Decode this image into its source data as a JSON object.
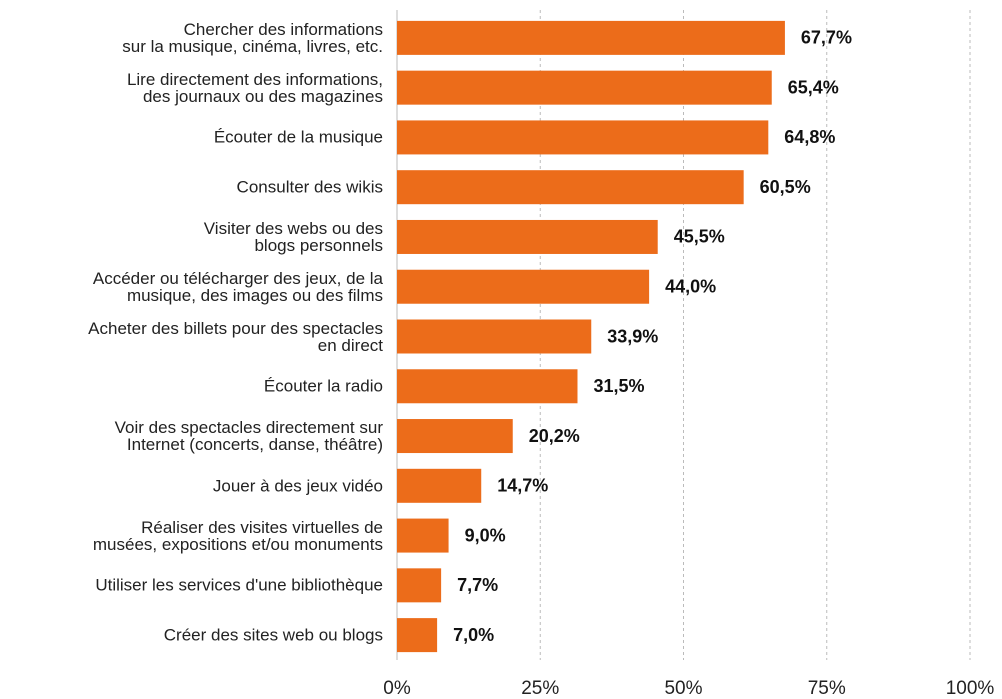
{
  "chart_data": {
    "type": "bar",
    "orientation": "horizontal",
    "categories": [
      "Chercher des informations\nsur la musique, cinéma, livres, etc.",
      "Lire directement des informations,\ndes journaux ou des magazines",
      "Écouter de la musique",
      "Consulter des wikis",
      "Visiter des webs ou des\nblogs personnels",
      "Accéder ou télécharger des jeux, de la\nmusique, des images ou des films",
      "Acheter des billets pour des spectacles\nen direct",
      "Écouter la radio",
      "Voir des spectacles directement sur\nInternet (concerts, danse, théâtre)",
      "Jouer à des jeux vidéo",
      "Réaliser des visites virtuelles de\nmusées, expositions et/ou monuments",
      "Utiliser les services d'une bibliothèque",
      "Créer des sites web ou blogs"
    ],
    "values": [
      67.7,
      65.4,
      64.8,
      60.5,
      45.5,
      44.0,
      33.9,
      31.5,
      20.2,
      14.7,
      9.0,
      7.7,
      7.0
    ],
    "value_labels": [
      "67,7%",
      "65,4%",
      "64,8%",
      "60,5%",
      "45,5%",
      "44,0%",
      "33,9%",
      "31,5%",
      "20,2%",
      "14,7%",
      "9,0%",
      "7,7%",
      "7,0%"
    ],
    "color": "#ec6c1a",
    "xlim": [
      0,
      100
    ],
    "xticks": [
      {
        "value": 0,
        "label": "0%"
      },
      {
        "value": 25,
        "label": "25%"
      },
      {
        "value": 50,
        "label": "50%"
      },
      {
        "value": 75,
        "label": "75%"
      },
      {
        "value": 100,
        "label": "100%"
      }
    ],
    "grid": true
  }
}
